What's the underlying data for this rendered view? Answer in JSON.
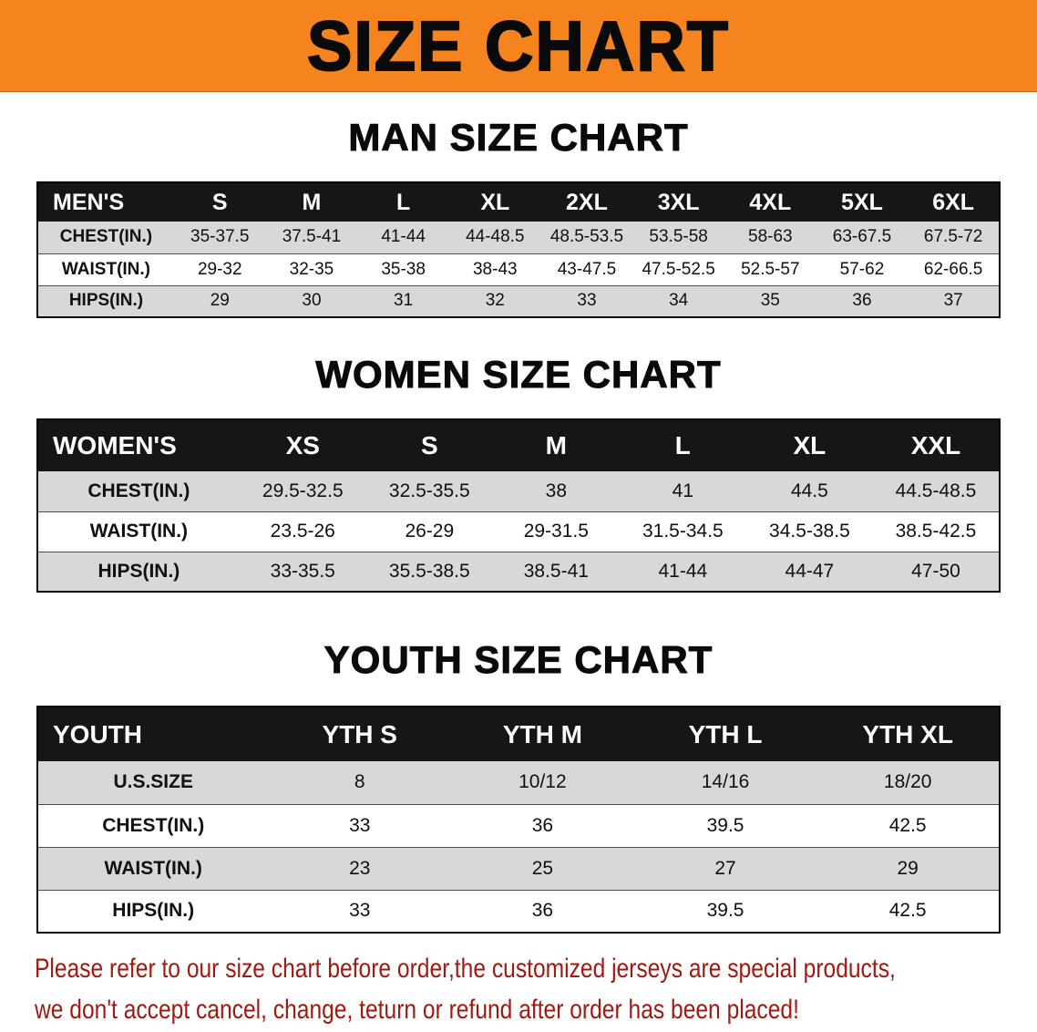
{
  "banner": {
    "title": "SIZE CHART"
  },
  "colors": {
    "banner_orange": "#f5841f",
    "table_header_black": "#161616",
    "row_shaded_gray": "#d8d8d8",
    "row_white": "#ffffff",
    "disclaimer_red": "#a01a10",
    "text_black": "#101010"
  },
  "sections": [
    {
      "id": "man",
      "heading": "MAN SIZE CHART",
      "table": {
        "header": [
          "MEN'S",
          "S",
          "M",
          "L",
          "XL",
          "2XL",
          "3XL",
          "4XL",
          "5XL",
          "6XL"
        ],
        "rows": [
          {
            "label": "CHEST(IN.)",
            "values": [
              "35-37.5",
              "37.5-41",
              "41-44",
              "44-48.5",
              "48.5-53.5",
              "53.5-58",
              "58-63",
              "63-67.5",
              "67.5-72"
            ]
          },
          {
            "label": "WAIST(IN.)",
            "values": [
              "29-32",
              "32-35",
              "35-38",
              "38-43",
              "43-47.5",
              "47.5-52.5",
              "52.5-57",
              "57-62",
              "62-66.5"
            ]
          },
          {
            "label": "HIPS(IN.)",
            "values": [
              "29",
              "30",
              "31",
              "32",
              "33",
              "34",
              "35",
              "36",
              "37"
            ]
          }
        ]
      }
    },
    {
      "id": "women",
      "heading": "WOMEN SIZE CHART",
      "table": {
        "header": [
          "WOMEN'S",
          "XS",
          "S",
          "M",
          "L",
          "XL",
          "XXL"
        ],
        "rows": [
          {
            "label": "CHEST(IN.)",
            "values": [
              "29.5-32.5",
              "32.5-35.5",
              "38",
              "41",
              "44.5",
              "44.5-48.5"
            ]
          },
          {
            "label": "WAIST(IN.)",
            "values": [
              "23.5-26",
              "26-29",
              "29-31.5",
              "31.5-34.5",
              "34.5-38.5",
              "38.5-42.5"
            ]
          },
          {
            "label": "HIPS(IN.)",
            "values": [
              "33-35.5",
              "35.5-38.5",
              "38.5-41",
              "41-44",
              "44-47",
              "47-50"
            ]
          }
        ]
      }
    },
    {
      "id": "youth",
      "heading": "YOUTH SIZE CHART",
      "table": {
        "header": [
          "YOUTH",
          "YTH S",
          "YTH M",
          "YTH L",
          "YTH XL"
        ],
        "rows": [
          {
            "label": "U.S.SIZE",
            "values": [
              "8",
              "10/12",
              "14/16",
              "18/20"
            ]
          },
          {
            "label": "CHEST(IN.)",
            "values": [
              "33",
              "36",
              "39.5",
              "42.5"
            ]
          },
          {
            "label": "WAIST(IN.)",
            "values": [
              "23",
              "25",
              "27",
              "29"
            ]
          },
          {
            "label": "HIPS(IN.)",
            "values": [
              "33",
              "36",
              "39.5",
              "42.5"
            ]
          }
        ]
      }
    }
  ],
  "disclaimer": {
    "line1": "Please refer to our size chart before order,the customized jerseys are special products,",
    "line2": "we don't accept cancel, change, teturn or refund after order has been placed!"
  }
}
